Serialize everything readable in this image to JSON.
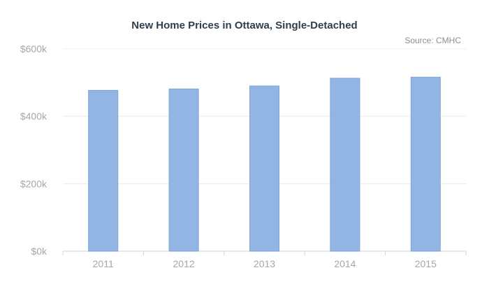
{
  "chart_data": {
    "type": "bar",
    "title": "New Home Prices in Ottawa, Single-Detached",
    "source": "Source: CMHC",
    "categories": [
      "2011",
      "2012",
      "2013",
      "2014",
      "2015"
    ],
    "values": [
      477000,
      481000,
      490000,
      513000,
      516000
    ],
    "ylim": [
      0,
      600000
    ],
    "yticks": [
      0,
      200000,
      400000,
      600000
    ],
    "ytick_labels": [
      "$0k",
      "$200k",
      "$400k",
      "$600k"
    ],
    "xlabel": "",
    "ylabel": "",
    "grid": true,
    "bar_color": "#93b5e3",
    "bar_edge_color": "#7fa4d8"
  }
}
